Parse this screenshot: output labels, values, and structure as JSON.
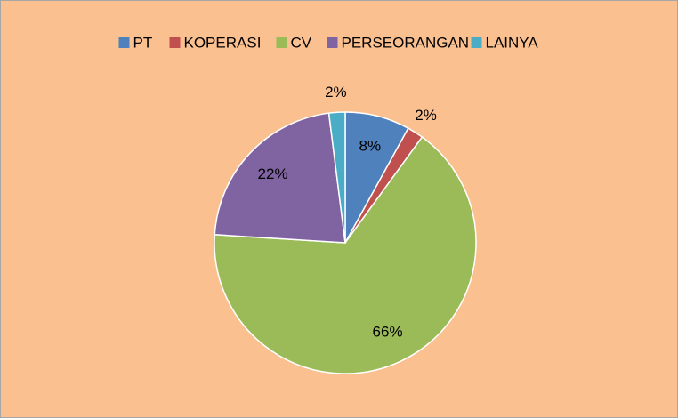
{
  "chart_data": {
    "type": "pie",
    "categories": [
      "PT",
      "KOPERASI",
      "CV",
      "PERSEORANGAN",
      "LAINYA"
    ],
    "values": [
      8,
      2,
      66,
      22,
      2
    ],
    "value_labels": [
      "8%",
      "2%",
      "66%",
      "22%",
      "2%"
    ],
    "colors": [
      "#4f81bd",
      "#c0504d",
      "#9bbb59",
      "#8064a2",
      "#4bacc6"
    ],
    "legend": "top"
  }
}
